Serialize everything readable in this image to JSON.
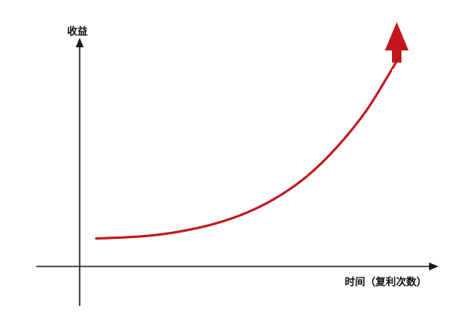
{
  "chart_data": {
    "type": "line",
    "title": "",
    "xlabel": "时间（复利次数）",
    "ylabel": "收益",
    "grid": false,
    "legend": "none",
    "curve_shape": "exponential",
    "series": [
      {
        "style": "smooth curve ending in upward arrow",
        "x": [
          0,
          10,
          20,
          30,
          40,
          50,
          60,
          70,
          80,
          90,
          100
        ],
        "y": [
          12,
          12.5,
          13.5,
          15.5,
          18.5,
          23,
          29.5,
          38.5,
          51,
          67,
          88
        ]
      }
    ],
    "xlim": [
      0,
      100
    ],
    "ylim": [
      0,
      100
    ],
    "colors": {
      "curve": "#c2161b",
      "axis": "#1a1a1a",
      "arrow_band": "#ffffff"
    }
  }
}
